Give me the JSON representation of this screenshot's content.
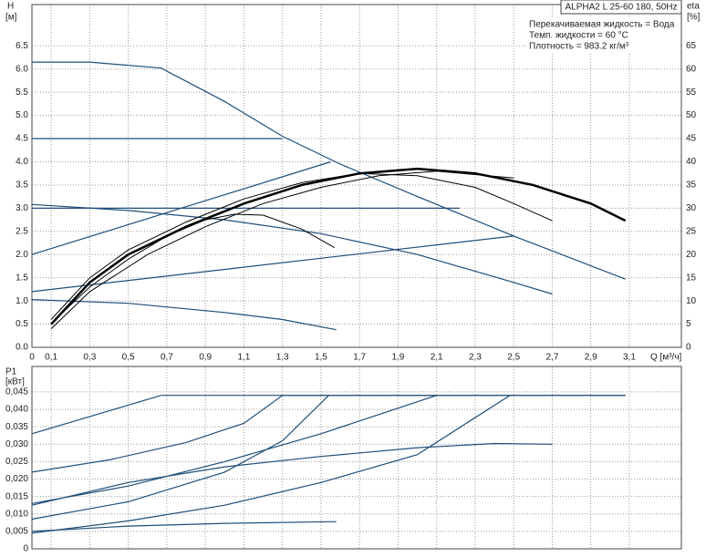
{
  "chart_data": [
    {
      "type": "line",
      "title": "ALPHA2 L 25-60 180, 50Hz",
      "annotations": [
        "Перекачиваемая жидкость = Вода",
        "Темп. жидкости = 60 °C",
        "Плотность = 983.2 кг/м³"
      ],
      "ylabel": "H",
      "yunit": "[м]",
      "y2label": "eta",
      "y2unit": "[%]",
      "xlabel": "Q [м³/ч]",
      "xlim": [
        0,
        3.37
      ],
      "ylim": [
        0,
        7.39
      ],
      "y2lim": [
        0,
        73.9
      ],
      "xticks": [
        0,
        {
          "value": 0.1,
          "label": "0,1"
        },
        {
          "value": 0.3,
          "label": "0,3"
        },
        {
          "value": 0.5,
          "label": "0,5"
        },
        {
          "value": 0.7,
          "label": "0,7"
        },
        {
          "value": 0.9,
          "label": "0,9"
        },
        {
          "value": 1.1,
          "label": "1,1"
        },
        {
          "value": 1.3,
          "label": "1,3"
        },
        {
          "value": 1.5,
          "label": "1,5"
        },
        {
          "value": 1.7,
          "label": "1,7"
        },
        {
          "value": 1.9,
          "label": "1,9"
        },
        {
          "value": 2.1,
          "label": "2,1"
        },
        {
          "value": 2.3,
          "label": "2,3"
        },
        {
          "value": 2.5,
          "label": "2,5"
        },
        {
          "value": 2.7,
          "label": "2,7"
        },
        {
          "value": 2.9,
          "label": "2,9"
        },
        {
          "value": 3.1,
          "label": "3,1"
        }
      ],
      "yticks": [
        {
          "value": 0,
          "label": "0.0"
        },
        0.5,
        {
          "value": 1,
          "label": "1.0"
        },
        1.5,
        {
          "value": 2,
          "label": "2.0"
        },
        2.5,
        {
          "value": 3,
          "label": "3.0"
        },
        3.5,
        {
          "value": 4,
          "label": "4.0"
        },
        4.5,
        {
          "value": 5,
          "label": "5.0"
        },
        5.5,
        {
          "value": 6,
          "label": "6.0"
        },
        6.5
      ],
      "y2ticks": [
        0,
        5,
        10,
        15,
        20,
        25,
        30,
        35,
        40,
        45,
        50,
        55,
        60,
        65
      ],
      "grid": true,
      "series": [
        {
          "color": "#1f4e79",
          "x": [
            0,
            0.3,
            0.67,
            1.0,
            1.3,
            1.6,
            2.0,
            2.5,
            3.08
          ],
          "values": [
            6.15,
            6.15,
            6.02,
            5.3,
            4.55,
            3.95,
            3.25,
            2.4,
            1.47
          ]
        },
        {
          "color": "#1f4e79",
          "x": [
            0,
            1.3
          ],
          "values": [
            4.5,
            4.5
          ]
        },
        {
          "color": "#1f4e79",
          "x": [
            0,
            2.22
          ],
          "values": [
            3.0,
            3.0
          ]
        },
        {
          "color": "#1f4e79",
          "x": [
            0,
            1.55
          ],
          "values": [
            2.0,
            4.0
          ]
        },
        {
          "color": "#1f4e79",
          "x": [
            0,
            2.5
          ],
          "values": [
            1.2,
            2.4
          ]
        },
        {
          "color": "#1f4e79",
          "x": [
            0,
            0.5,
            1.0,
            1.5,
            2.0,
            2.5,
            2.7
          ],
          "values": [
            3.08,
            2.95,
            2.75,
            2.45,
            2.0,
            1.4,
            1.15
          ]
        },
        {
          "color": "#1f4e79",
          "x": [
            0,
            0.5,
            1.0,
            1.3,
            1.58
          ],
          "values": [
            1.03,
            0.95,
            0.75,
            0.6,
            0.38
          ]
        },
        {
          "color": "#000000",
          "axis": "y2",
          "width": 2.5,
          "x": [
            0.1,
            0.3,
            0.5,
            0.8,
            1.1,
            1.4,
            1.7,
            2.0,
            2.3,
            2.6,
            2.9,
            3.08
          ],
          "values": [
            5,
            14,
            20,
            26,
            31,
            35,
            37.5,
            38.5,
            37.5,
            35,
            31,
            27.3
          ]
        },
        {
          "color": "#000000",
          "axis": "y2",
          "width": 1,
          "x": [
            0.1,
            0.3,
            0.5,
            0.8,
            1.1,
            1.4,
            1.7,
            2.0,
            2.3,
            2.5,
            2.7
          ],
          "values": [
            6,
            15,
            21,
            27,
            32,
            35.5,
            37.5,
            37,
            34.5,
            31,
            27.3
          ]
        },
        {
          "color": "#000000",
          "axis": "y2",
          "width": 1,
          "x": [
            0.12,
            0.3,
            0.5,
            0.7,
            0.9,
            1.05,
            1.2,
            1.4,
            1.57
          ],
          "values": [
            6,
            13,
            19,
            24,
            27.5,
            28.7,
            28.5,
            25.5,
            21.5
          ]
        },
        {
          "color": "#000000",
          "axis": "y2",
          "width": 1,
          "x": [
            0.1,
            0.3,
            0.6,
            0.9,
            1.2,
            1.5,
            1.8,
            2.1,
            2.5
          ],
          "values": [
            4,
            12,
            20,
            26,
            31,
            34.5,
            37,
            38,
            36.5
          ]
        }
      ]
    },
    {
      "type": "line",
      "ylabel": "P1",
      "yunit": "[кВт]",
      "xlim": [
        0,
        3.37
      ],
      "ylim": [
        0,
        0.0523
      ],
      "yticks": [
        0,
        {
          "value": 0.005,
          "label": "0,005"
        },
        {
          "value": 0.01,
          "label": "0,010"
        },
        {
          "value": 0.015,
          "label": "0,015"
        },
        {
          "value": 0.02,
          "label": "0,020"
        },
        {
          "value": 0.025,
          "label": "0,025"
        },
        {
          "value": 0.03,
          "label": "0,030"
        },
        {
          "value": 0.035,
          "label": "0,035"
        },
        {
          "value": 0.04,
          "label": "0,040"
        },
        {
          "value": 0.045,
          "label": "0,045"
        }
      ],
      "grid": true,
      "series": [
        {
          "color": "#1f4e79",
          "x": [
            0,
            0.67,
            3.08
          ],
          "values": [
            0.033,
            0.044,
            0.044
          ]
        },
        {
          "color": "#1f4e79",
          "x": [
            0,
            0.4,
            0.8,
            1.1,
            1.3,
            3.08
          ],
          "values": [
            0.022,
            0.0255,
            0.0305,
            0.036,
            0.044,
            0.044
          ]
        },
        {
          "color": "#1f4e79",
          "x": [
            0,
            0.5,
            1.0,
            1.3,
            1.54
          ],
          "values": [
            0.0085,
            0.0135,
            0.022,
            0.031,
            0.044
          ]
        },
        {
          "color": "#1f4e79",
          "x": [
            0,
            0.5,
            1.0,
            1.5,
            2.1
          ],
          "values": [
            0.013,
            0.018,
            0.025,
            0.033,
            0.044
          ]
        },
        {
          "color": "#1f4e79",
          "x": [
            0,
            0.5,
            1.0,
            1.5,
            2.0,
            2.48
          ],
          "values": [
            0.0045,
            0.008,
            0.0125,
            0.019,
            0.027,
            0.044
          ]
        },
        {
          "color": "#1f4e79",
          "x": [
            0,
            0.5,
            1.0,
            1.5,
            2.0,
            2.4,
            2.7
          ],
          "values": [
            0.0125,
            0.019,
            0.0235,
            0.0265,
            0.029,
            0.0302,
            0.03
          ]
        },
        {
          "color": "#1f4e79",
          "x": [
            0,
            0.5,
            1.0,
            1.58
          ],
          "values": [
            0.005,
            0.0065,
            0.0073,
            0.0078
          ]
        }
      ]
    }
  ]
}
